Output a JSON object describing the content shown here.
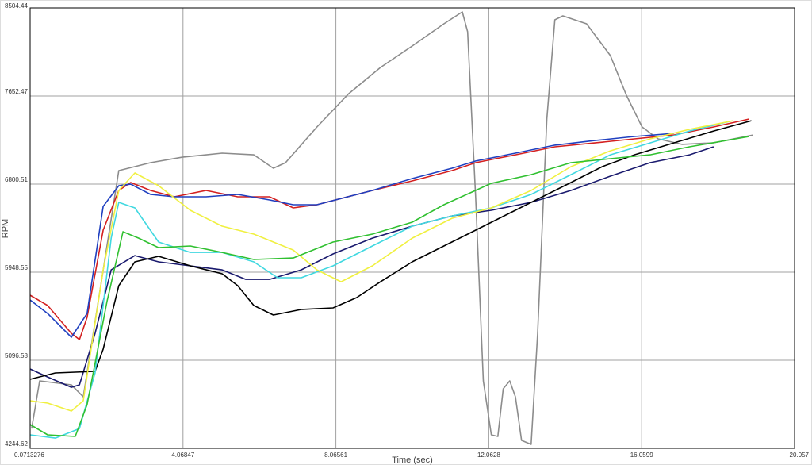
{
  "chart_data": {
    "type": "line",
    "x_label": "Time (sec)",
    "y_label": "RPM",
    "xlim": [
      0.0713276,
      20.057
    ],
    "xticks": [
      0.0713276,
      4.06847,
      8.06561,
      12.0628,
      16.0599,
      20.057
    ],
    "ylim": [
      4244.62,
      8504.44
    ],
    "yticks": [
      4244.62,
      5096.58,
      5948.55,
      6800.51,
      7652.47,
      8504.44
    ],
    "grid": true,
    "series": [
      {
        "color": "#8c8c8c",
        "x": [
          0.11,
          0.32,
          1.15,
          1.46,
          2.39,
          3.22,
          4.05,
          5.09,
          5.92,
          6.43,
          6.75,
          7.57,
          8.4,
          9.23,
          10.06,
          10.89,
          11.37,
          11.51,
          11.72,
          11.92,
          12.13,
          12.3,
          12.44,
          12.61,
          12.76,
          12.92,
          13.17,
          13.34,
          13.58,
          13.79,
          14.0,
          14.62,
          15.24,
          15.66,
          16.07,
          16.49,
          17.11,
          17.94,
          18.97
        ],
        "values": [
          4436,
          4897,
          4859,
          4743,
          6931,
          7008,
          7061,
          7100,
          7084,
          6954,
          7008,
          7353,
          7675,
          7929,
          8136,
          8351,
          8466,
          8274,
          6662,
          4897,
          4375,
          4360,
          4820,
          4897,
          4743,
          4321,
          4283,
          5357,
          7430,
          8389,
          8428,
          8351,
          8044,
          7660,
          7353,
          7238,
          7185,
          7200,
          7276
        ]
      },
      {
        "color": "#d42020",
        "x": [
          0.07,
          0.53,
          1.15,
          1.36,
          1.56,
          1.98,
          2.39,
          2.7,
          3.22,
          3.84,
          4.67,
          5.5,
          6.33,
          6.95,
          7.57,
          9.02,
          10.06,
          11.1,
          11.72,
          12.76,
          13.79,
          14.83,
          15.87,
          16.9,
          17.94,
          18.87
        ],
        "values": [
          5726,
          5626,
          5357,
          5296,
          5511,
          6355,
          6739,
          6816,
          6739,
          6678,
          6739,
          6678,
          6678,
          6570,
          6601,
          6739,
          6831,
          6931,
          7008,
          7084,
          7161,
          7199,
          7238,
          7276,
          7353,
          7430
        ]
      },
      {
        "color": "#2040c0",
        "x": [
          0.07,
          0.53,
          1.15,
          1.56,
          1.98,
          2.39,
          2.7,
          3.22,
          3.84,
          4.67,
          5.5,
          6.33,
          6.95,
          7.57,
          9.02,
          10.06,
          11.1,
          11.72,
          12.76,
          13.79,
          14.83,
          15.87,
          16.9
        ],
        "values": [
          5680,
          5549,
          5319,
          5549,
          6585,
          6785,
          6800,
          6701,
          6678,
          6678,
          6701,
          6647,
          6601,
          6601,
          6739,
          6854,
          6954,
          7024,
          7100,
          7177,
          7222,
          7261,
          7291
        ]
      },
      {
        "color": "#1a1a6e",
        "x": [
          0.07,
          0.53,
          1.15,
          1.36,
          1.77,
          2.19,
          2.81,
          3.43,
          4.26,
          5.09,
          5.71,
          6.33,
          7.16,
          7.99,
          9.02,
          10.06,
          11.1,
          12.13,
          13.17,
          14.21,
          15.24,
          16.28,
          17.31,
          17.94
        ],
        "values": [
          5012,
          4935,
          4835,
          4859,
          5357,
          5971,
          6109,
          6048,
          6010,
          5971,
          5879,
          5879,
          5971,
          6125,
          6278,
          6394,
          6493,
          6547,
          6624,
          6739,
          6877,
          7008,
          7084,
          7161
        ]
      },
      {
        "color": "#000000",
        "x": [
          0.07,
          0.73,
          1.77,
          1.98,
          2.39,
          2.81,
          3.43,
          4.26,
          5.09,
          5.5,
          5.92,
          6.43,
          7.16,
          7.99,
          8.61,
          9.23,
          10.06,
          10.89,
          11.72,
          12.55,
          13.38,
          14.21,
          15.03,
          15.87,
          16.9,
          17.94,
          18.93
        ],
        "values": [
          4912,
          4974,
          4989,
          5204,
          5818,
          6048,
          6102,
          6010,
          5933,
          5818,
          5626,
          5534,
          5588,
          5603,
          5703,
          5856,
          6048,
          6202,
          6355,
          6509,
          6662,
          6816,
          6969,
          7084,
          7199,
          7314,
          7414
        ]
      },
      {
        "color": "#40d8e0",
        "x": [
          0.07,
          0.73,
          1.36,
          1.77,
          2.19,
          2.39,
          2.81,
          3.43,
          4.26,
          5.09,
          5.92,
          6.54,
          7.16,
          7.99,
          9.02,
          10.06,
          11.1,
          12.13,
          13.17,
          14.21,
          15.24,
          16.28,
          17.31,
          18.35
        ],
        "values": [
          4375,
          4344,
          4436,
          4974,
          6278,
          6624,
          6570,
          6240,
          6140,
          6140,
          6048,
          5895,
          5895,
          6010,
          6202,
          6394,
          6493,
          6570,
          6701,
          6892,
          7084,
          7199,
          7314,
          7406
        ]
      },
      {
        "color": "#f0f040",
        "x": [
          0.07,
          0.53,
          1.15,
          1.46,
          1.98,
          2.39,
          2.81,
          3.43,
          4.26,
          5.09,
          5.92,
          6.95,
          7.57,
          8.2,
          9.02,
          10.06,
          11.1,
          12.13,
          13.17,
          14.21,
          15.24,
          16.28,
          17.31,
          18.45
        ],
        "values": [
          4705,
          4682,
          4605,
          4705,
          5971,
          6739,
          6908,
          6785,
          6547,
          6394,
          6317,
          6163,
          5971,
          5856,
          6010,
          6278,
          6470,
          6570,
          6739,
          6969,
          7122,
          7238,
          7330,
          7414
        ]
      },
      {
        "color": "#30c030",
        "x": [
          0.07,
          0.53,
          1.25,
          1.56,
          2.08,
          2.5,
          2.91,
          3.43,
          4.26,
          5.09,
          5.92,
          6.95,
          7.99,
          9.02,
          10.06,
          10.89,
          12.13,
          13.17,
          14.21,
          15.24,
          16.28,
          17.31,
          18.87
        ],
        "values": [
          4475,
          4375,
          4360,
          4667,
          5664,
          6340,
          6278,
          6186,
          6202,
          6140,
          6071,
          6086,
          6240,
          6317,
          6432,
          6601,
          6808,
          6892,
          7008,
          7046,
          7084,
          7161,
          7261
        ]
      }
    ]
  }
}
